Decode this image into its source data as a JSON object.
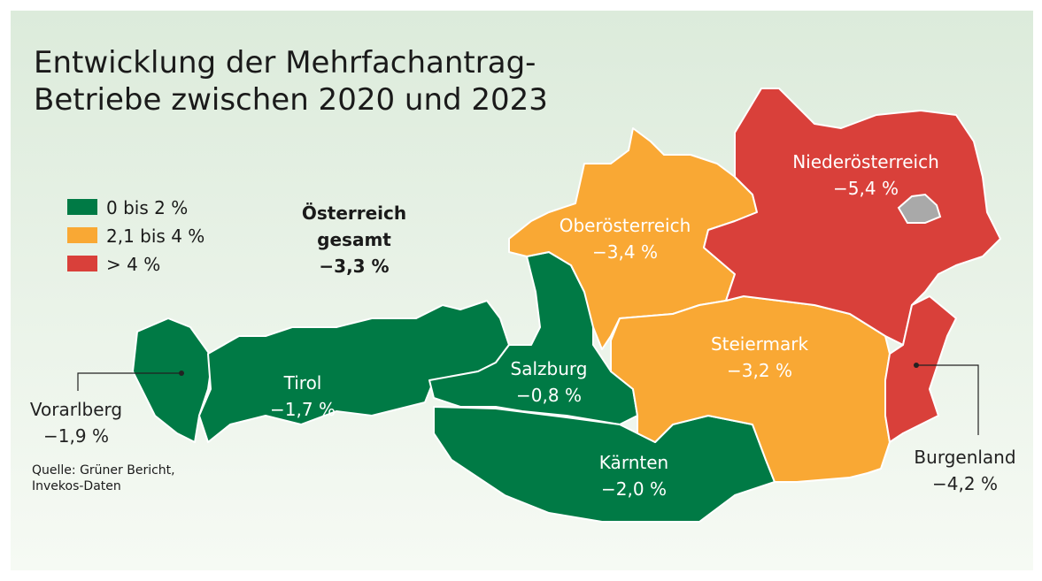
{
  "title": [
    "Entwicklung der Mehrfachantrag-",
    "Betriebe zwischen 2020 und 2023"
  ],
  "legend": [
    {
      "label": "0 bis 2 %",
      "color": "#007a45"
    },
    {
      "label": "2,1 bis 4 %",
      "color": "#f9a834"
    },
    {
      "label": "> 4 %",
      "color": "#d9403a"
    }
  ],
  "total": {
    "lines": [
      "Österreich",
      "gesamt"
    ],
    "value": "−3,3 %"
  },
  "regions": [
    {
      "name": "Vorarlberg",
      "value": "−1,9 %",
      "legend": 0
    },
    {
      "name": "Tirol",
      "value": "−1,7 %",
      "legend": 0
    },
    {
      "name": "Salzburg",
      "value": "−0,8 %",
      "legend": 0
    },
    {
      "name": "Kärnten",
      "value": "−2,0 %",
      "legend": 0
    },
    {
      "name": "Oberösterreich",
      "value": "−3,4 %",
      "legend": 1
    },
    {
      "name": "Steiermark",
      "value": "−3,2 %",
      "legend": 1
    },
    {
      "name": "Niederösterreich",
      "value": "−5,4 %",
      "legend": 2
    },
    {
      "name": "Burgenland",
      "value": "−4,2 %",
      "legend": 2
    }
  ],
  "source": [
    "Quelle: Grüner Bericht,",
    "Invekos-Daten"
  ]
}
